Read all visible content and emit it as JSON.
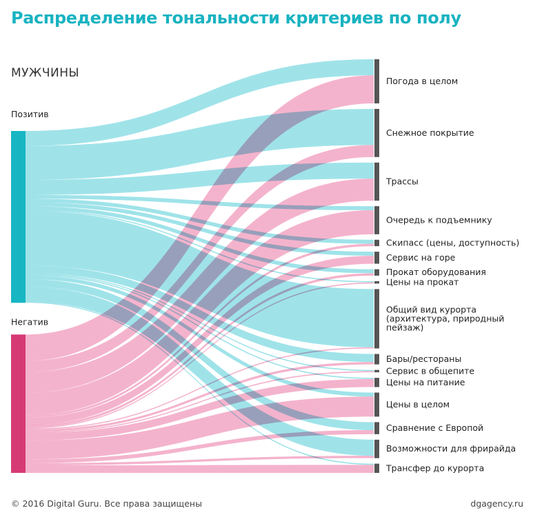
{
  "page": {
    "title": "Распределение тональности критериев по полу",
    "section": "МУЖЧИНЫ",
    "footer_left": "© 2016 Digital Guru. Все права защищены",
    "footer_right": "dgagency.ru"
  },
  "colors": {
    "title": "#19b3c1",
    "positive": "#17b6c3",
    "negative": "#d63a75",
    "positive_flow": "#8edee5",
    "negative_flow": "#f2a6c3",
    "target_bar": "#555555"
  },
  "chart_data": {
    "type": "sankey",
    "sources": [
      "Позитив",
      "Негатив"
    ],
    "targets": [
      {
        "label": [
          "Погода в целом"
        ],
        "positive": 4,
        "negative": 7
      },
      {
        "label": [
          "Снежное покрытие"
        ],
        "positive": 9,
        "negative": 3
      },
      {
        "label": [
          "Трассы"
        ],
        "positive": 4,
        "negative": 5.5
      },
      {
        "label": [
          "Очередь к подъемнику"
        ],
        "positive": 1,
        "negative": 6
      },
      {
        "label": [
          "Скипасс (цены, доступность)"
        ],
        "positive": 1,
        "negative": 0.6
      },
      {
        "label": [
          "Сервис на горе"
        ],
        "positive": 1,
        "negative": 2
      },
      {
        "label": [
          "Прокат оборудования"
        ],
        "positive": 1,
        "negative": 0.6
      },
      {
        "label": [
          "Цены на прокат"
        ],
        "positive": 0.3,
        "negative": 0.3
      },
      {
        "label": [
          "Общий вид курорта",
          "(архитектура, природный",
          "пейзаж)"
        ],
        "positive": 14.5,
        "negative": 0.3
      },
      {
        "label": [
          "Бары/рестораны"
        ],
        "positive": 2,
        "negative": 0.6
      },
      {
        "label": [
          "Сервис в общепите"
        ],
        "positive": 0.3,
        "negative": 0.3
      },
      {
        "label": [
          "Цены на питание"
        ],
        "positive": 0.3,
        "negative": 2
      },
      {
        "label": [
          "Цены в целом"
        ],
        "positive": 1,
        "negative": 5
      },
      {
        "label": [
          "Сравнение с Европой"
        ],
        "positive": 2,
        "negative": 1
      },
      {
        "label": [
          "Возможности для фрирайда"
        ],
        "positive": 4,
        "negative": 0.6
      },
      {
        "label": [
          "Трансфер до курорта"
        ],
        "positive": 0.3,
        "negative": 2
      }
    ]
  }
}
